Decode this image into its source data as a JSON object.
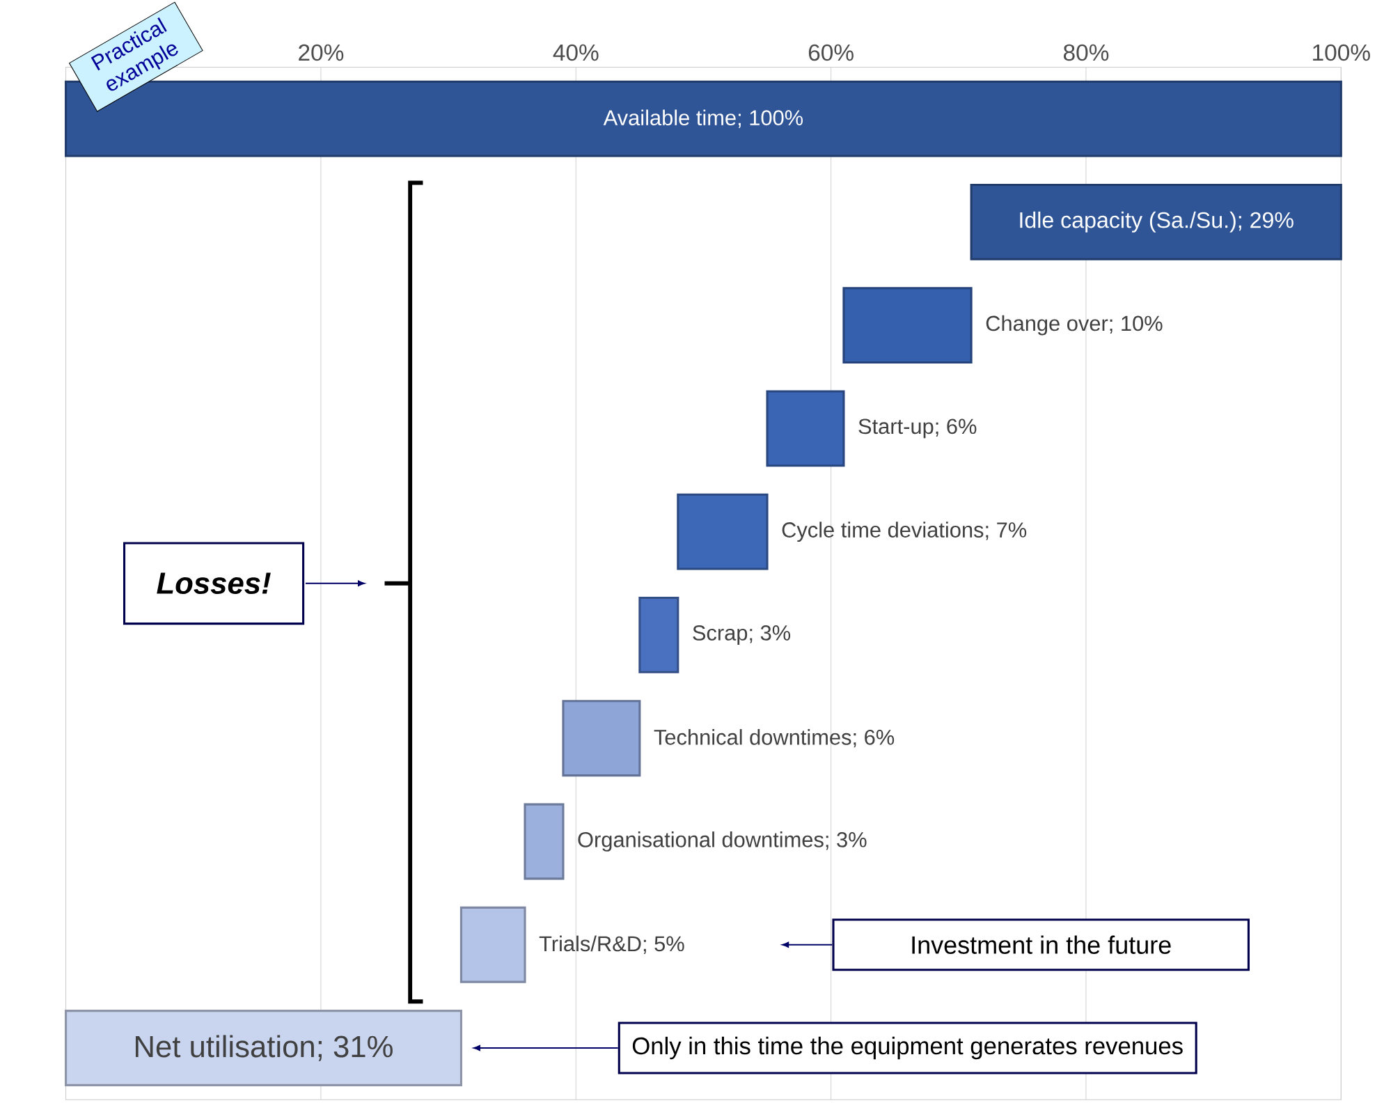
{
  "chart_data": {
    "type": "bar",
    "orientation": "horizontal",
    "annotations": [
      "Practical example",
      "Losses!",
      "Investment in the future",
      "Only in this time the equipment generates revenues"
    ],
    "categories": [
      null,
      null,
      null,
      null,
      null,
      null,
      null,
      null,
      null,
      null
    ],
    "base": [
      0,
      71,
      61,
      55,
      48,
      45,
      39,
      36,
      31,
      0
    ],
    "values": [
      100,
      29,
      10,
      6,
      7,
      3,
      6,
      3,
      5,
      31
    ],
    "colors": [
      "#2f5597",
      "#2f5597",
      "#3560ae",
      "#3a64b4",
      "#3d68b8",
      "#4a70c0",
      "#8ea5d8",
      "#9cb0de",
      "#b4c3e8",
      "#c9d4ef"
    ],
    "value_labels": [
      "Available time; 100%",
      "Idle capacity (Sa./Su.); 29%",
      "Change over; 10%",
      "Start-up; 6%",
      "Cycle time deviations; 7%",
      "Scrap; 3%",
      "Technical downtimes; 6%",
      "Organisational downtimes; 3%",
      "Trials/R&D; 5%",
      "Net utilisation; 31%"
    ],
    "xlim": [
      0,
      100
    ],
    "xticks": [
      {
        "value": 20,
        "label": "20%"
      },
      {
        "value": 40,
        "label": "40%"
      },
      {
        "value": 60,
        "label": "60%"
      },
      {
        "value": 80,
        "label": "80%"
      },
      {
        "value": 100,
        "label": "100%"
      }
    ],
    "grid": "x"
  }
}
